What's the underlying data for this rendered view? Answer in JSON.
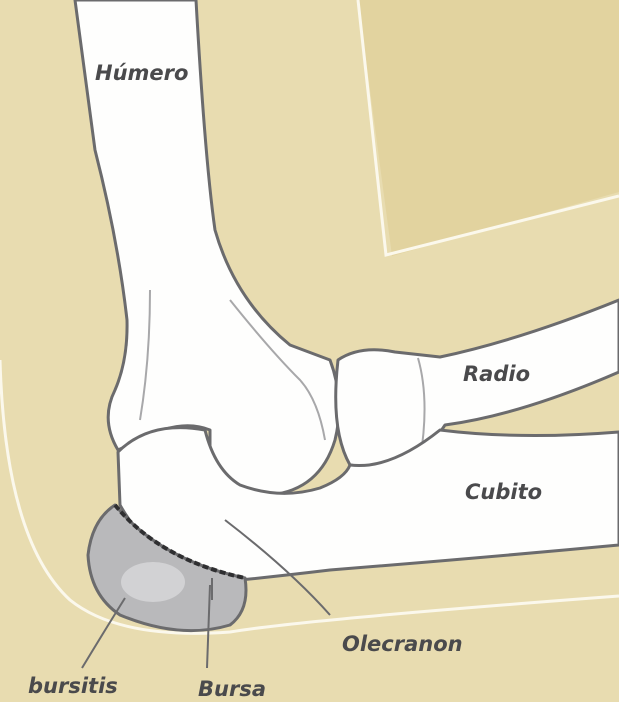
{
  "labels": {
    "humerus": "Húmero",
    "radius": "Radio",
    "ulna": "Cubito",
    "olecranon": "Olecranon",
    "bursitis": "bursitis",
    "bursa": "Bursa"
  },
  "colors": {
    "background": "#e8dcb0",
    "skin_dark": "#e0d09a",
    "bone_fill": "#fefefd",
    "bone_outline": "#6b6b6d",
    "bursa_fill": "#b9b9bb",
    "text": "#4a4a4c"
  }
}
